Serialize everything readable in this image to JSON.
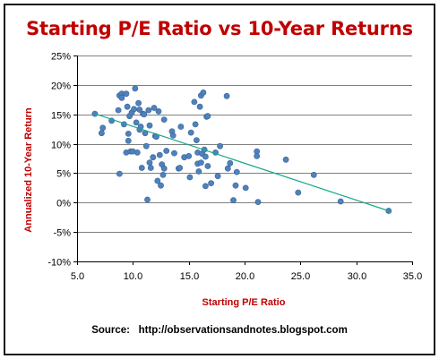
{
  "chart_data": {
    "type": "scatter",
    "title": "Starting P/E Ratio vs 10-Year Returns",
    "xlabel": "Starting P/E Ratio",
    "ylabel": "Annualized  10-Year Return",
    "source": "Source:   http://observationsandnotes.blogspot.com",
    "xlim": [
      5.0,
      35.0
    ],
    "ylim": [
      -0.1,
      0.25
    ],
    "x_ticks": [
      "5.0",
      "10.0",
      "15.0",
      "20.0",
      "25.0",
      "30.0",
      "35.0"
    ],
    "y_ticks": [
      "-10%",
      "-5%",
      "0%",
      "5%",
      "10%",
      "15%",
      "20%",
      "25%"
    ],
    "grid": "horizontal",
    "legend": "none",
    "colors": {
      "title": "#c00000",
      "axis_labels": "#c00000",
      "points": "#4f81bd",
      "point_edge": "#3a6595",
      "trendline": "#17a889",
      "gridlines": "#808080"
    },
    "trendline": {
      "type": "linear",
      "x": [
        6.6,
        32.9
      ],
      "y": [
        0.151,
        -0.014
      ]
    },
    "points": [
      {
        "x": 6.6,
        "y": 0.151
      },
      {
        "x": 7.2,
        "y": 0.118
      },
      {
        "x": 7.3,
        "y": 0.127
      },
      {
        "x": 8.1,
        "y": 0.139
      },
      {
        "x": 8.7,
        "y": 0.157
      },
      {
        "x": 8.8,
        "y": 0.182
      },
      {
        "x": 8.8,
        "y": 0.049
      },
      {
        "x": 9.0,
        "y": 0.185
      },
      {
        "x": 9.0,
        "y": 0.178
      },
      {
        "x": 9.2,
        "y": 0.133
      },
      {
        "x": 9.4,
        "y": 0.185
      },
      {
        "x": 9.4,
        "y": 0.085
      },
      {
        "x": 9.5,
        "y": 0.163
      },
      {
        "x": 9.6,
        "y": 0.105
      },
      {
        "x": 9.6,
        "y": 0.117
      },
      {
        "x": 9.7,
        "y": 0.147
      },
      {
        "x": 9.8,
        "y": 0.087
      },
      {
        "x": 9.9,
        "y": 0.153
      },
      {
        "x": 10.0,
        "y": 0.087
      },
      {
        "x": 10.1,
        "y": 0.159
      },
      {
        "x": 10.2,
        "y": 0.194
      },
      {
        "x": 10.3,
        "y": 0.136
      },
      {
        "x": 10.4,
        "y": 0.085
      },
      {
        "x": 10.5,
        "y": 0.169
      },
      {
        "x": 10.6,
        "y": 0.158
      },
      {
        "x": 10.6,
        "y": 0.124
      },
      {
        "x": 10.7,
        "y": 0.129
      },
      {
        "x": 10.8,
        "y": 0.059
      },
      {
        "x": 10.9,
        "y": 0.151
      },
      {
        "x": 11.0,
        "y": 0.15
      },
      {
        "x": 11.1,
        "y": 0.118
      },
      {
        "x": 11.2,
        "y": 0.096
      },
      {
        "x": 11.3,
        "y": 0.005
      },
      {
        "x": 11.4,
        "y": 0.157
      },
      {
        "x": 11.5,
        "y": 0.131
      },
      {
        "x": 11.5,
        "y": 0.068
      },
      {
        "x": 11.6,
        "y": 0.059
      },
      {
        "x": 11.8,
        "y": 0.077
      },
      {
        "x": 11.9,
        "y": 0.161
      },
      {
        "x": 12.0,
        "y": 0.113
      },
      {
        "x": 12.1,
        "y": 0.112
      },
      {
        "x": 12.2,
        "y": 0.037
      },
      {
        "x": 12.3,
        "y": 0.155
      },
      {
        "x": 12.4,
        "y": 0.081
      },
      {
        "x": 12.5,
        "y": 0.029
      },
      {
        "x": 12.6,
        "y": 0.065
      },
      {
        "x": 12.7,
        "y": 0.047
      },
      {
        "x": 12.8,
        "y": 0.141
      },
      {
        "x": 12.8,
        "y": 0.058
      },
      {
        "x": 13.0,
        "y": 0.088
      },
      {
        "x": 13.5,
        "y": 0.121
      },
      {
        "x": 13.6,
        "y": 0.114
      },
      {
        "x": 13.7,
        "y": 0.084
      },
      {
        "x": 14.1,
        "y": 0.058
      },
      {
        "x": 14.2,
        "y": 0.059
      },
      {
        "x": 14.3,
        "y": 0.129
      },
      {
        "x": 14.6,
        "y": 0.077
      },
      {
        "x": 15.0,
        "y": 0.079
      },
      {
        "x": 15.1,
        "y": 0.043
      },
      {
        "x": 15.2,
        "y": 0.119
      },
      {
        "x": 15.5,
        "y": 0.171
      },
      {
        "x": 15.6,
        "y": 0.133
      },
      {
        "x": 15.7,
        "y": 0.106
      },
      {
        "x": 15.8,
        "y": 0.066
      },
      {
        "x": 15.8,
        "y": 0.085
      },
      {
        "x": 15.9,
        "y": 0.053
      },
      {
        "x": 16.0,
        "y": 0.163
      },
      {
        "x": 16.1,
        "y": 0.182
      },
      {
        "x": 16.1,
        "y": 0.068
      },
      {
        "x": 16.2,
        "y": 0.083
      },
      {
        "x": 16.3,
        "y": 0.187
      },
      {
        "x": 16.4,
        "y": 0.09
      },
      {
        "x": 16.5,
        "y": 0.078
      },
      {
        "x": 16.5,
        "y": 0.028
      },
      {
        "x": 16.6,
        "y": 0.146
      },
      {
        "x": 16.7,
        "y": 0.147
      },
      {
        "x": 16.7,
        "y": 0.062
      },
      {
        "x": 17.0,
        "y": 0.033
      },
      {
        "x": 17.4,
        "y": 0.085
      },
      {
        "x": 17.6,
        "y": 0.045
      },
      {
        "x": 17.8,
        "y": 0.096
      },
      {
        "x": 18.4,
        "y": 0.181
      },
      {
        "x": 18.5,
        "y": 0.058
      },
      {
        "x": 18.7,
        "y": 0.067
      },
      {
        "x": 19.0,
        "y": 0.004
      },
      {
        "x": 19.2,
        "y": 0.029
      },
      {
        "x": 19.3,
        "y": 0.052
      },
      {
        "x": 20.1,
        "y": 0.025
      },
      {
        "x": 21.1,
        "y": 0.087
      },
      {
        "x": 21.1,
        "y": 0.079
      },
      {
        "x": 21.2,
        "y": 0.001
      },
      {
        "x": 23.7,
        "y": 0.073
      },
      {
        "x": 24.8,
        "y": 0.017
      },
      {
        "x": 26.2,
        "y": 0.047
      },
      {
        "x": 28.6,
        "y": 0.002
      },
      {
        "x": 32.9,
        "y": -0.014
      }
    ]
  }
}
